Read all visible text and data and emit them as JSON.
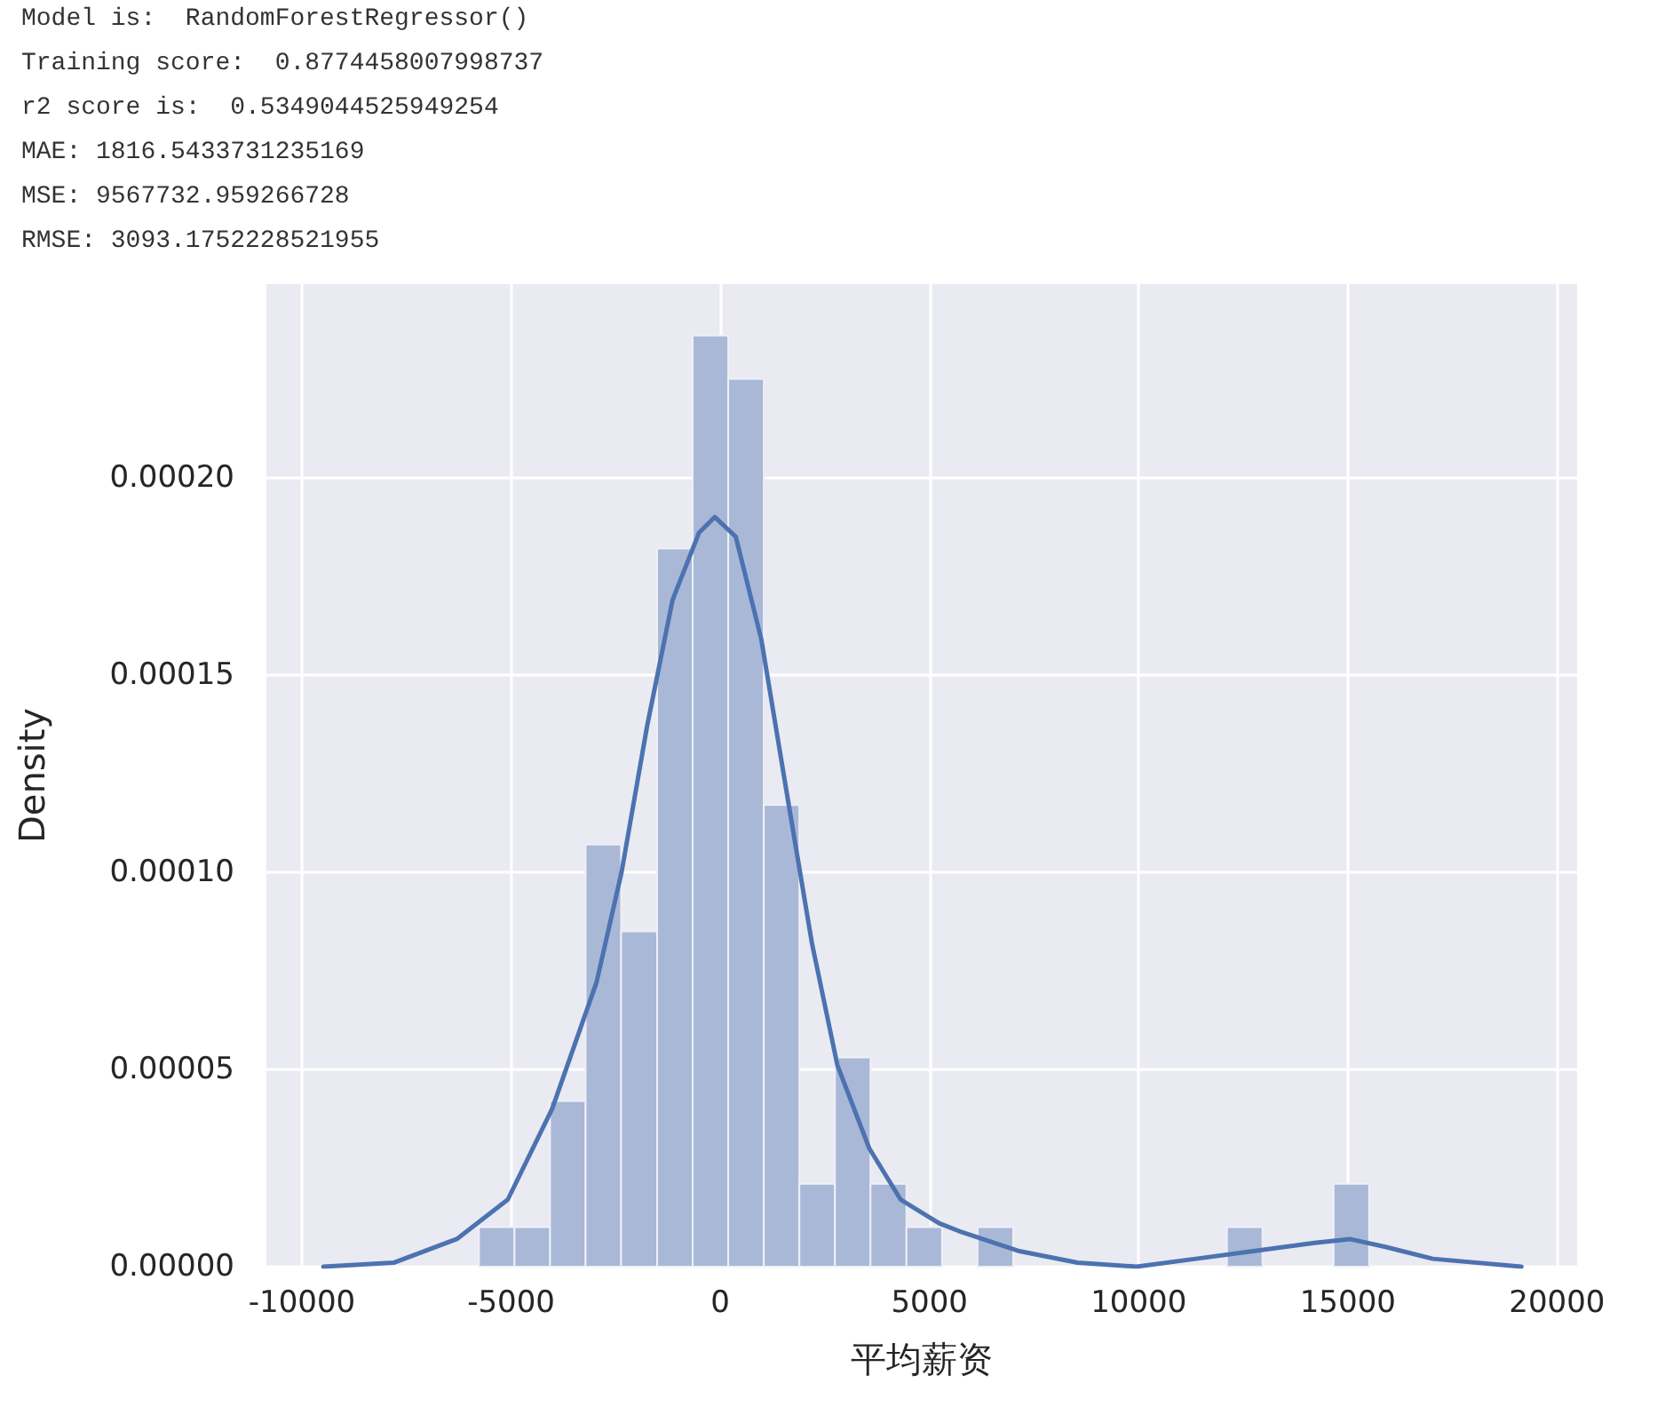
{
  "chart_data": {
    "type": "histogram",
    "annotations": [
      "Model is:  RandomForestRegressor()",
      "Training score:  0.8774458007998737",
      "r2 score is:  0.5349044525949254",
      "MAE: 1816.5433731235169",
      "MSE: 9567732.959266728",
      "RMSE: 3093.1752228521955"
    ],
    "xlabel": "平均薪资",
    "ylabel": "Density",
    "series": [
      {
        "color": "#a9b8d7",
        "bins": [
          -5770,
          -4920,
          -4070,
          -3220,
          -2370,
          -1510,
          -660,
          190,
          1040,
          1890,
          2740,
          3590,
          4450,
          5300,
          6150,
          7000,
          7850,
          8700,
          9550,
          10400,
          11260,
          12110,
          12960,
          13810,
          14660,
          15510
        ],
        "values": [
          1e-05,
          1e-05,
          4.2e-05,
          0.000107,
          8.5e-05,
          0.000182,
          0.000236,
          0.000225,
          0.000117,
          2.1e-05,
          5.3e-05,
          2.1e-05,
          1e-05,
          0,
          1e-05,
          0,
          0,
          0,
          0,
          0,
          0,
          1e-05,
          0,
          0,
          2.1e-05
        ]
      },
      {
        "type": "line",
        "color": "#4c72b0",
        "x": [
          -9490,
          -7810,
          -6300,
          -5080,
          -4020,
          -2960,
          -2360,
          -1750,
          -1140,
          -510,
          -130,
          370,
          980,
          1590,
          2190,
          2800,
          3560,
          4310,
          5230,
          5710,
          7120,
          8540,
          9950,
          11370,
          12780,
          14200,
          15050,
          15900,
          17030,
          19150
        ],
        "values": [
          0,
          1e-06,
          7e-06,
          1.7e-05,
          4e-05,
          7.2e-05,
          0.0001,
          0.000137,
          0.000169,
          0.000186,
          0.00019,
          0.000185,
          0.000159,
          0.00012,
          8.2e-05,
          5.1e-05,
          3e-05,
          1.7e-05,
          1.1e-05,
          9e-06,
          4e-06,
          1e-06,
          0,
          2e-06,
          4e-06,
          6e-06,
          7e-06,
          5e-06,
          2e-06,
          0
        ]
      }
    ],
    "xlim": [
      -10850,
      20480
    ],
    "xticks": [
      -10000,
      -5000,
      0,
      5000,
      10000,
      15000,
      20000
    ],
    "ylim": [
      0,
      0.000249
    ],
    "yticks": [
      {
        "value": 0,
        "label": "0.00000"
      },
      {
        "value": 5e-05,
        "label": "0.00005"
      },
      {
        "value": 0.0001,
        "label": "0.00010"
      },
      {
        "value": 0.00015,
        "label": "0.00015"
      },
      {
        "value": 0.0002,
        "label": "0.00020"
      }
    ],
    "grid": true
  }
}
